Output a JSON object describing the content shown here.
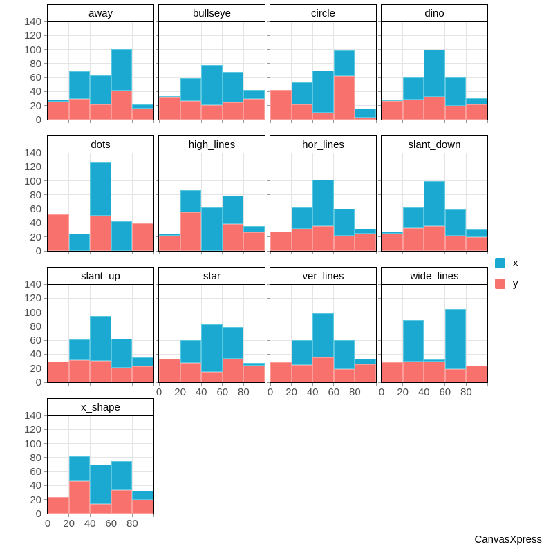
{
  "page": {
    "background": "#ffffff",
    "branding": "CanvasXpress"
  },
  "legend": {
    "items": [
      {
        "label": "x",
        "color": "#1BA8D1"
      },
      {
        "label": "y",
        "color": "#F9716C"
      }
    ]
  },
  "chart_data": {
    "type": "bar",
    "subtype": "stacked-histogram-small-multiples",
    "title": "",
    "xlabel": "",
    "ylabel": "",
    "xlim": [
      0,
      100
    ],
    "ylim": [
      0,
      140
    ],
    "bin_width": 20,
    "bin_edges": [
      0,
      20,
      40,
      60,
      80,
      100
    ],
    "x_ticks": [
      0,
      20,
      40,
      60,
      80
    ],
    "y_ticks": [
      0,
      20,
      40,
      60,
      80,
      100,
      120,
      140
    ],
    "grid": true,
    "legend_position": "right",
    "stack_order_bottom_to_top": [
      "y",
      "x"
    ],
    "series": [
      {
        "name": "x",
        "color": "#1BA8D1",
        "border": "#5BC8E2"
      },
      {
        "name": "y",
        "color": "#F9716C",
        "border": "#FB9D98"
      }
    ],
    "facet_grid": [
      [
        "away",
        "bullseye",
        "circle",
        "dino"
      ],
      [
        "dots",
        "high_lines",
        "hor_lines",
        "slant_down"
      ],
      [
        "slant_up",
        "star",
        "ver_lines",
        "wide_lines"
      ],
      [
        "x_shape",
        null,
        null,
        null
      ]
    ],
    "facets": [
      {
        "title": "away",
        "y": [
          26,
          30,
          22,
          41,
          16
        ],
        "x": [
          3,
          39,
          41,
          60,
          6
        ]
      },
      {
        "title": "bullseye",
        "y": [
          32,
          27,
          21,
          25,
          30
        ],
        "x": [
          2,
          32,
          57,
          43,
          12
        ]
      },
      {
        "title": "circle",
        "y": [
          42,
          22,
          10,
          62,
          3
        ],
        "x": [
          0,
          31,
          60,
          37,
          13
        ]
      },
      {
        "title": "dino",
        "y": [
          27,
          29,
          33,
          20,
          22
        ],
        "x": [
          1,
          31,
          67,
          40,
          9
        ]
      },
      {
        "title": "dots",
        "y": [
          52,
          0,
          50,
          0,
          39
        ],
        "x": [
          0,
          25,
          76,
          42,
          0
        ]
      },
      {
        "title": "high_lines",
        "y": [
          22,
          55,
          0,
          38,
          27
        ],
        "x": [
          3,
          32,
          62,
          41,
          9
        ]
      },
      {
        "title": "hor_lines",
        "y": [
          28,
          32,
          36,
          22,
          25
        ],
        "x": [
          0,
          30,
          66,
          38,
          7
        ]
      },
      {
        "title": "slant_down",
        "y": [
          25,
          33,
          36,
          22,
          20
        ],
        "x": [
          3,
          29,
          64,
          37,
          11
        ]
      },
      {
        "title": "slant_up",
        "y": [
          30,
          32,
          31,
          21,
          23
        ],
        "x": [
          0,
          29,
          64,
          41,
          13
        ]
      },
      {
        "title": "star",
        "y": [
          34,
          28,
          15,
          34,
          24
        ],
        "x": [
          0,
          32,
          68,
          45,
          4
        ]
      },
      {
        "title": "ver_lines",
        "y": [
          29,
          25,
          36,
          19,
          26
        ],
        "x": [
          0,
          35,
          63,
          41,
          8
        ]
      },
      {
        "title": "wide_lines",
        "y": [
          29,
          30,
          30,
          19,
          24
        ],
        "x": [
          0,
          59,
          3,
          86,
          0
        ]
      },
      {
        "title": "x_shape",
        "y": [
          24,
          46,
          14,
          34,
          20
        ],
        "x": [
          0,
          36,
          56,
          41,
          13
        ]
      }
    ]
  }
}
